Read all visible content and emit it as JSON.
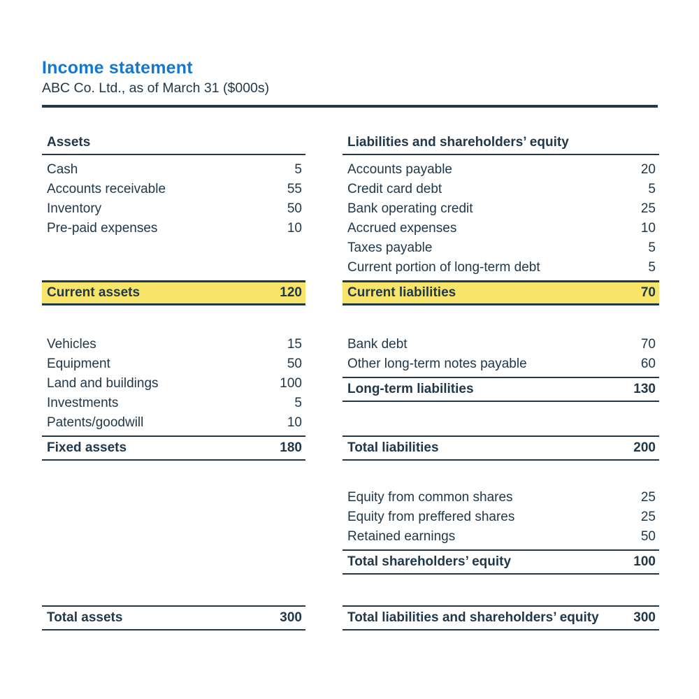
{
  "page": {
    "title": "Income statement",
    "subtitle": "ABC Co. Ltd., as of March 31 ($000s)"
  },
  "colors": {
    "accent_blue": "#1478d2",
    "ink": "#21384a",
    "highlight_yellow": "#f8e468"
  },
  "assets": {
    "header": "Assets",
    "current_items": [
      {
        "label": "Cash",
        "value": "5"
      },
      {
        "label": "Accounts receivable",
        "value": "55"
      },
      {
        "label": "Inventory",
        "value": "50"
      },
      {
        "label": "Pre-paid expenses",
        "value": "10"
      }
    ],
    "current_total": {
      "label": "Current assets",
      "value": "120"
    },
    "fixed_items": [
      {
        "label": "Vehicles",
        "value": "15"
      },
      {
        "label": "Equipment",
        "value": "50"
      },
      {
        "label": "Land and buildings",
        "value": "100"
      },
      {
        "label": "Investments",
        "value": "5"
      },
      {
        "label": "Patents/goodwill",
        "value": "10"
      }
    ],
    "fixed_total": {
      "label": "Fixed assets",
      "value": "180"
    },
    "total": {
      "label": "Total assets",
      "value": "300"
    }
  },
  "liabilities": {
    "header": "Liabilities and shareholders’ equity",
    "current_items": [
      {
        "label": "Accounts payable",
        "value": "20"
      },
      {
        "label": "Credit card debt",
        "value": "5"
      },
      {
        "label": "Bank operating credit",
        "value": "25"
      },
      {
        "label": "Accrued expenses",
        "value": "10"
      },
      {
        "label": "Taxes payable",
        "value": "5"
      },
      {
        "label": "Current portion of long-term debt",
        "value": "5"
      }
    ],
    "current_total": {
      "label": "Current liabilities",
      "value": "70"
    },
    "longterm_items": [
      {
        "label": "Bank debt",
        "value": "70"
      },
      {
        "label": "Other long-term notes payable",
        "value": "60"
      }
    ],
    "longterm_total": {
      "label": "Long-term liabilities",
      "value": "130"
    },
    "total_liabilities": {
      "label": "Total liabilities",
      "value": "200"
    },
    "equity_items": [
      {
        "label": "Equity from common shares",
        "value": "25"
      },
      {
        "label": "Equity from preffered shares",
        "value": "25"
      },
      {
        "label": "Retained earnings",
        "value": "50"
      }
    ],
    "equity_total": {
      "label": "Total shareholders’ equity",
      "value": "100"
    },
    "total": {
      "label": "Total liabilities and shareholders’ equity",
      "value": "300"
    }
  }
}
